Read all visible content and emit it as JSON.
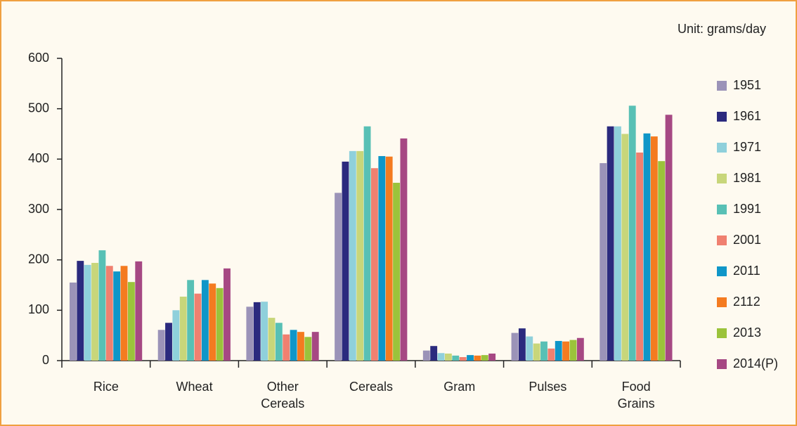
{
  "chart_data": {
    "type": "bar",
    "subtitle": "Unit: grams/day",
    "categories": [
      "Rice",
      "Wheat",
      "Other Cereals",
      "Cereals",
      "Gram",
      "Pulses",
      "Food Grains"
    ],
    "series": [
      {
        "name": "1951",
        "color": "#9b93b8",
        "values": [
          155,
          61,
          107,
          333,
          20,
          55,
          392
        ]
      },
      {
        "name": "1961",
        "color": "#2b2a7e",
        "values": [
          198,
          75,
          116,
          395,
          29,
          64,
          465
        ]
      },
      {
        "name": "1971",
        "color": "#8fd0db",
        "values": [
          190,
          100,
          117,
          416,
          15,
          48,
          465
        ]
      },
      {
        "name": "1981",
        "color": "#c8d67a",
        "values": [
          194,
          127,
          85,
          416,
          14,
          34,
          450
        ]
      },
      {
        "name": "1991",
        "color": "#58c0b5",
        "values": [
          219,
          160,
          75,
          465,
          10,
          38,
          506
        ]
      },
      {
        "name": "2001",
        "color": "#f08070",
        "values": [
          188,
          133,
          52,
          382,
          7,
          24,
          413
        ]
      },
      {
        "name": "2011",
        "color": "#0f96c8",
        "values": [
          177,
          160,
          61,
          406,
          11,
          39,
          451
        ]
      },
      {
        "name": "2112",
        "color": "#f47b20",
        "values": [
          188,
          153,
          57,
          405,
          10,
          38,
          445
        ]
      },
      {
        "name": "2013",
        "color": "#9bc33b",
        "values": [
          156,
          144,
          47,
          353,
          11,
          41,
          396
        ]
      },
      {
        "name": "2014(P)",
        "color": "#a64883",
        "values": [
          197,
          183,
          57,
          441,
          14,
          45,
          488
        ]
      }
    ],
    "ylim": [
      0,
      600
    ],
    "yticks": [
      0,
      100,
      200,
      300,
      400,
      500,
      600
    ],
    "grid": false,
    "legend": "right"
  }
}
